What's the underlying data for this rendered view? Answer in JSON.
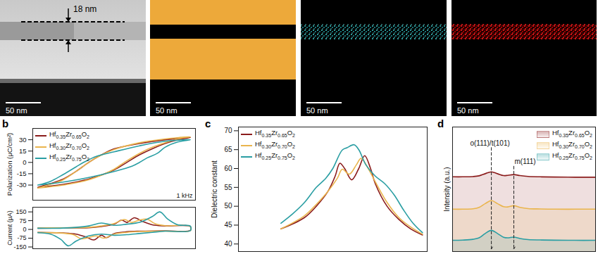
{
  "image_panels": [
    {
      "annotation": "18 nm",
      "scale_bar": "50 nm"
    },
    {
      "scale_bar": "50 nm"
    },
    {
      "scale_bar": "50 nm"
    },
    {
      "scale_bar": "50 nm"
    }
  ],
  "chart_data": [
    {
      "type": "line",
      "panel_label": "b",
      "ylabel": "Polarization (μC/cm²)",
      "xlim": [
        -3.2,
        3.2
      ],
      "ylim": [
        -50,
        45
      ],
      "yticks": [
        -30,
        -15,
        0,
        15,
        30
      ],
      "tick_labels": "y",
      "legend": "top-left",
      "annotations": [
        {
          "text": "1 kHz"
        }
      ],
      "series": [
        {
          "name": "Hf0.35Zr0.65O2",
          "color": "#8b1c1c",
          "x": [
            -3,
            -2,
            -1,
            0,
            0.5,
            1,
            1.5,
            2,
            2.5,
            3,
            2,
            1,
            0,
            -0.5,
            -1,
            -1.5,
            -2,
            -2.5,
            -3
          ],
          "values": [
            -33,
            -29,
            -22,
            -10,
            0,
            10,
            18,
            25,
            30,
            33,
            30,
            25,
            18,
            10,
            0,
            -12,
            -22,
            -28,
            -33
          ]
        },
        {
          "name": "Hf0.30Zr0.70O2",
          "color": "#eab54d",
          "x": [
            -3,
            -2,
            -1,
            0,
            0.4,
            1,
            1.5,
            2,
            2.5,
            3,
            2,
            1,
            0,
            -0.6,
            -1,
            -1.5,
            -2,
            -2.5,
            -3
          ],
          "values": [
            -34,
            -30,
            -23,
            -9,
            0,
            12,
            20,
            26,
            31,
            34,
            31,
            26,
            17,
            8,
            0,
            -12,
            -23,
            -29,
            -34
          ]
        },
        {
          "name": "Hf0.25Zr0.75O2",
          "color": "#2a9ea3",
          "x": [
            -3,
            -2,
            -1,
            0,
            0.7,
            1,
            1.3,
            1.7,
            2,
            2.5,
            3,
            2,
            1,
            0,
            -0.7,
            -1.2,
            -1.5,
            -2,
            -2.5,
            -3
          ],
          "values": [
            -30,
            -26,
            -20,
            -12,
            -5,
            0,
            6,
            12,
            20,
            27,
            30,
            28,
            22,
            14,
            8,
            0,
            -6,
            -16,
            -25,
            -30
          ]
        }
      ]
    },
    {
      "type": "line",
      "ylabel": "Current (μA)",
      "xlim": [
        -3.2,
        3.2
      ],
      "ylim": [
        -165,
        190
      ],
      "yticks": [
        -150,
        -75,
        0,
        75,
        150
      ],
      "tick_labels": "y",
      "series": [
        {
          "color": "#8b1c1c",
          "x": [
            -3,
            -2,
            -1,
            -0.5,
            0,
            0.3,
            0.5,
            0.8,
            1.1,
            1.5,
            2,
            3,
            3,
            2,
            1,
            0.5,
            0,
            -0.3,
            -0.5,
            -0.8,
            -1.1,
            -1.5,
            -2,
            -3
          ],
          "values": [
            10,
            12,
            15,
            25,
            45,
            80,
            60,
            100,
            70,
            40,
            30,
            25,
            -8,
            -12,
            -15,
            -20,
            -35,
            -70,
            -50,
            -90,
            -65,
            -40,
            -30,
            -25
          ]
        },
        {
          "color": "#eab54d",
          "x": [
            -3,
            -2,
            -1,
            -0.5,
            0,
            0.4,
            0.7,
            1,
            1.3,
            1.6,
            2,
            3,
            3,
            2,
            1,
            0.5,
            0,
            -0.4,
            -0.7,
            -1,
            -1.3,
            -1.6,
            -2,
            -3
          ],
          "values": [
            12,
            14,
            18,
            30,
            50,
            85,
            60,
            80,
            88,
            50,
            32,
            26,
            -10,
            -14,
            -18,
            -25,
            -40,
            -75,
            -55,
            -70,
            -80,
            -45,
            -32,
            -26
          ]
        },
        {
          "color": "#2a9ea3",
          "x": [
            -3,
            -2,
            -1,
            -0.5,
            0,
            0.5,
            1,
            1.5,
            1.8,
            2.1,
            2.5,
            3,
            3,
            2,
            1.5,
            1,
            0.5,
            0,
            -0.5,
            -1,
            -1.5,
            -1.8,
            -2.1,
            -2.5,
            -3
          ],
          "values": [
            10,
            12,
            30,
            55,
            35,
            45,
            60,
            110,
            150,
            90,
            40,
            28,
            -10,
            -15,
            -25,
            -35,
            -45,
            -50,
            -40,
            -55,
            -100,
            -140,
            -85,
            -40,
            -28
          ]
        }
      ]
    },
    {
      "type": "line",
      "panel_label": "c",
      "ylabel": "Dielectric constant",
      "xlim": [
        -4.8,
        3.2
      ],
      "ylim": [
        38,
        71
      ],
      "yticks": [
        40,
        45,
        50,
        55,
        60,
        65,
        70
      ],
      "tick_labels": "y",
      "legend": "top-left",
      "series": [
        {
          "name": "Hf0.35Zr0.65O2",
          "color": "#8b1c1c",
          "x": [
            -3,
            -2,
            -1.5,
            -1,
            -0.7,
            -0.5,
            -0.3,
            0,
            0.3,
            0.55,
            0.8,
            1,
            1.5,
            2,
            2.5,
            3
          ],
          "values": [
            44,
            47,
            50,
            54,
            58,
            61.4,
            60,
            57,
            60,
            63.4,
            60,
            56,
            50,
            46.5,
            44,
            42.4
          ]
        },
        {
          "name": "Hf0.30Zr0.70O2",
          "color": "#eab54d",
          "x": [
            -3,
            -2,
            -1.5,
            -1,
            -0.6,
            -0.4,
            -0.1,
            0.2,
            0.4,
            0.7,
            1,
            1.5,
            2,
            2.5,
            3
          ],
          "values": [
            44,
            47.5,
            50.5,
            54,
            57.5,
            59.8,
            58.5,
            61,
            62.7,
            60,
            56.5,
            51,
            47,
            44.5,
            42.6
          ]
        },
        {
          "name": "Hf0.25Zr0.75O2",
          "color": "#2a9ea3",
          "x": [
            -3,
            -2.5,
            -2,
            -1.5,
            -1.1,
            -0.8,
            -0.4,
            -0.2,
            0.1,
            0.3,
            0.6,
            1,
            1.4,
            1.8,
            2.2,
            2.6,
            3
          ],
          "values": [
            45.5,
            48,
            51,
            55,
            57.4,
            60,
            64.9,
            65.5,
            66.3,
            65,
            61,
            58,
            56,
            53,
            49,
            45.5,
            43
          ]
        }
      ]
    },
    {
      "type": "area",
      "panel_label": "d",
      "ylabel": "Intensity (a.u.)",
      "xlim": [
        28.5,
        35.5
      ],
      "ylim": [
        0,
        100
      ],
      "tick_labels": false,
      "legend": "top-right",
      "annotations": [
        {
          "text": "o(111)/t(101)",
          "x": 30.4
        },
        {
          "text": "m(111)",
          "x": 31.5
        }
      ],
      "series": [
        {
          "name": "Hf0.35Zr0.65O2",
          "color": "#8b1c1c",
          "x": [
            28.5,
            29,
            29.5,
            29.8,
            30.1,
            30.4,
            30.7,
            31,
            31.2,
            31.5,
            31.8,
            32.2,
            32.8,
            33.5,
            34.5,
            35.5
          ],
          "values": [
            60,
            60,
            60.2,
            60.8,
            62.5,
            64,
            62.5,
            61,
            61.2,
            61.8,
            61,
            60.3,
            60,
            59.8,
            59.7,
            59.7
          ]
        },
        {
          "name": "Hf0.30Zr0.70O2",
          "color": "#eab54d",
          "x": [
            28.5,
            29,
            29.5,
            29.8,
            30.1,
            30.4,
            30.7,
            31,
            31.2,
            31.5,
            31.8,
            32.2,
            32.8,
            33.5,
            34.5,
            35.5
          ],
          "values": [
            34,
            34,
            34.3,
            35.5,
            38.5,
            41,
            38.5,
            36,
            35.8,
            36.8,
            35.5,
            34.5,
            34.2,
            34,
            34,
            34
          ]
        },
        {
          "name": "Hf0.25Zr0.75O2",
          "color": "#2a9ea3",
          "x": [
            28.5,
            29,
            29.5,
            29.8,
            30.1,
            30.4,
            30.7,
            31,
            31.2,
            31.5,
            31.8,
            32.2,
            32.8,
            33.5,
            34.5,
            35.5
          ],
          "values": [
            9,
            9.2,
            9.8,
            11,
            14.5,
            17,
            14.5,
            11.5,
            11,
            11.6,
            10.5,
            9.6,
            9.3,
            9.1,
            9,
            9
          ]
        }
      ]
    }
  ]
}
